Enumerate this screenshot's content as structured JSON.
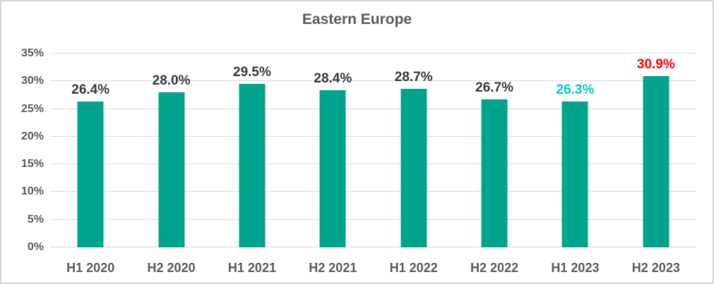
{
  "window": {
    "background_color": "#FFFFFF",
    "border_color": "#D5D5D8"
  },
  "chart_data": {
    "type": "bar",
    "title": "Eastern Europe",
    "title_color": "#595959",
    "categories": [
      "H1 2020",
      "H2 2020",
      "H1 2021",
      "H2 2021",
      "H1 2022",
      "H2 2022",
      "H1 2023",
      "H2 2023"
    ],
    "values": [
      26.4,
      28.0,
      29.5,
      28.4,
      28.7,
      26.7,
      26.3,
      30.9
    ],
    "labels": [
      "26.4%",
      "28.0%",
      "29.5%",
      "28.4%",
      "28.7%",
      "26.7%",
      "26.3%",
      "30.9%"
    ],
    "label_colors": [
      "#383838",
      "#383838",
      "#383838",
      "#383838",
      "#383838",
      "#383838",
      "#00CCBC",
      "#FF0000"
    ],
    "bar_color": "#00A48D",
    "xlabel": "",
    "ylabel": "",
    "ylim": [
      0,
      35
    ],
    "ytick_step": 5,
    "ytick_suffix": "%",
    "ytick_labels": [
      "0%",
      "5%",
      "10%",
      "15%",
      "20%",
      "25%",
      "30%",
      "35%"
    ],
    "grid": true,
    "gridline_color": "#D9D9D9",
    "axis_text_color": "#595959",
    "legend": "none"
  }
}
